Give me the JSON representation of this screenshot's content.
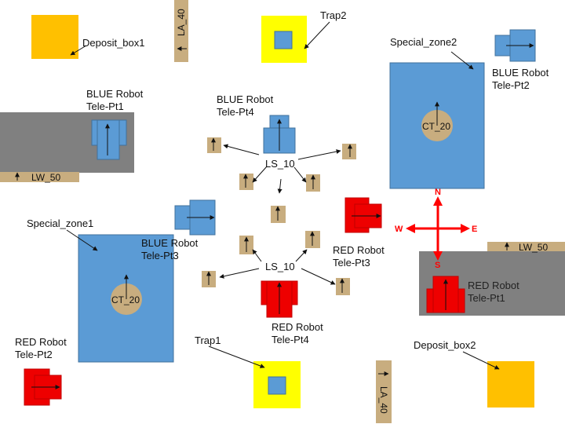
{
  "colors": {
    "blue": "#5b9bd5",
    "red": "#ee0000",
    "tan": "#c8ad7f",
    "yellow": "#ffff00",
    "orange": "#ffc000",
    "gray": "#808080",
    "compass": "#ff0000"
  },
  "labels": {
    "deposit_box1": "Deposit_box1",
    "deposit_box2": "Deposit_box2",
    "trap1": "Trap1",
    "trap2": "Trap2",
    "special_zone1": "Special_zone1",
    "special_zone2": "Special_zone2",
    "ct_left": "CT_20",
    "ct_right": "CT_20",
    "la_top": "LA_40",
    "la_bottom": "LA_40",
    "lw_left": "LW_50",
    "lw_right": "LW_50",
    "ls_top": "LS_10",
    "ls_bottom": "LS_10",
    "blue_pt1": "BLUE Robot\nTele-Pt1",
    "blue_pt2": "BLUE Robot\nTele-Pt2",
    "blue_pt3": "BLUE Robot\nTele-Pt3",
    "blue_pt4": "BLUE Robot\nTele-Pt4",
    "red_pt1": "RED Robot\nTele-Pt1",
    "red_pt2": "RED Robot\nTele-Pt2",
    "red_pt3": "RED Robot\nTele-Pt3",
    "red_pt4": "RED Robot\nTele-Pt4"
  },
  "compass": {
    "n": "N",
    "s": "S",
    "e": "E",
    "w": "W"
  }
}
